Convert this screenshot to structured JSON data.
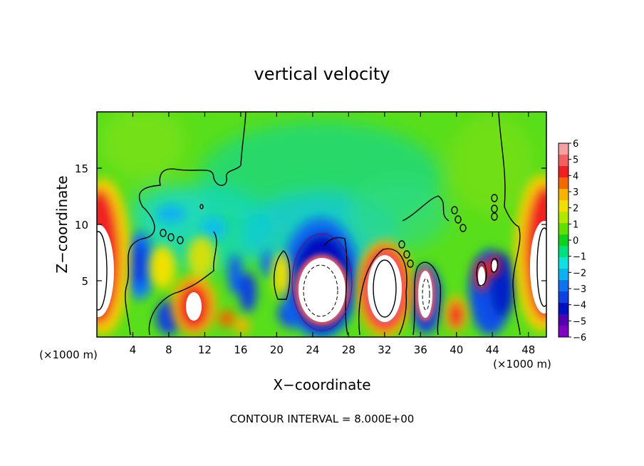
{
  "chart_data": {
    "type": "heatmap",
    "title": "vertical velocity",
    "xlabel": "X−coordinate",
    "ylabel": "Z−coordinate",
    "x_unit_left": "(×1000 m)",
    "x_unit_right": "(×1000 m)",
    "footer": "CONTOUR INTERVAL = 8.000E+00",
    "xlim": [
      0,
      50
    ],
    "ylim": [
      0,
      20
    ],
    "x_ticks": [
      4,
      8,
      12,
      16,
      20,
      24,
      28,
      32,
      36,
      40,
      44,
      48
    ],
    "y_ticks": [
      5,
      10,
      15
    ],
    "colorbar": {
      "ticks": [
        "6",
        "5",
        "4",
        "3",
        "2",
        "1",
        "0",
        "−1",
        "−2",
        "−3",
        "−4",
        "−5",
        "−6"
      ],
      "colors": [
        "#f4a0a0",
        "#f46060",
        "#f02020",
        "#f06a00",
        "#f5b400",
        "#f0e000",
        "#b0e800",
        "#60e000",
        "#10d020",
        "#00e080",
        "#10e0e0",
        "#10b0f0",
        "#1070f0",
        "#1040e0",
        "#0010c0",
        "#5000b0",
        "#8000c0"
      ]
    },
    "features": [
      {
        "x": 25,
        "z": 4.8,
        "w": 6.5,
        "type": "updraft",
        "extends_beyond_colorbar": true
      },
      {
        "x": 31.5,
        "z": 3.8,
        "w": 6.3,
        "type": "updraft",
        "extends_beyond_colorbar": true
      },
      {
        "x": 36.8,
        "z": 3.5,
        "w": 6.2,
        "type": "updraft",
        "extends_beyond_colorbar": true
      },
      {
        "x": 10.7,
        "z": 2.5,
        "w": 5.5,
        "type": "updraft"
      },
      {
        "x": 39.8,
        "z": 2.0,
        "w": 5.0,
        "type": "updraft"
      },
      {
        "x": 1.0,
        "z": 6.5,
        "w": 6.5,
        "type": "updraft",
        "extends_beyond_colorbar": true
      },
      {
        "x": 49.2,
        "z": 6.5,
        "w": 6.5,
        "type": "updraft",
        "extends_beyond_colorbar": true
      },
      {
        "x": 43.7,
        "z": 6.0,
        "w": 6.0,
        "type": "updraft",
        "extends_beyond_colorbar": true
      },
      {
        "x": 25,
        "z": 6.0,
        "w": -5.5,
        "type": "downdraft"
      },
      {
        "x": 23.5,
        "z": 3.0,
        "w": -4.5,
        "type": "downdraft"
      },
      {
        "x": 3.5,
        "z": 6.0,
        "w": -4.0,
        "type": "downdraft"
      },
      {
        "x": 9.5,
        "z": 2.0,
        "w": -4.0,
        "type": "downdraft"
      },
      {
        "x": 43.5,
        "z": 4.0,
        "w": -4.5,
        "type": "downdraft"
      },
      {
        "x": 35.5,
        "z": 4.0,
        "w": -4.5,
        "type": "downdraft"
      },
      {
        "x": 17.5,
        "z": 5.0,
        "w": -3.5,
        "type": "downdraft"
      },
      {
        "x": 7.5,
        "z": 8.0,
        "w": -2.0,
        "type": "downdraft"
      }
    ]
  }
}
